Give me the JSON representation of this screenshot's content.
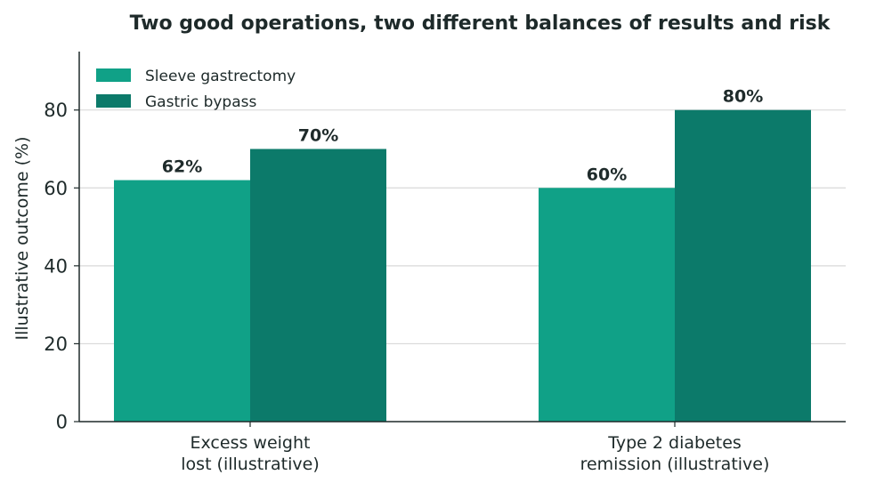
{
  "colors": {
    "sleeve": "#10a187",
    "bypass": "#0c7a6a",
    "grid": "#d9d9d9",
    "axis": "#1e2a2a",
    "text": "#1e2a2a"
  },
  "chart_data": {
    "type": "bar",
    "title": "Two good operations, two different balances of results and risk",
    "xlabel": "",
    "ylabel": "Illustrative outcome (%)",
    "ylim": [
      0,
      95
    ],
    "yticks": [
      0,
      20,
      40,
      60,
      80
    ],
    "grid": "horizontal",
    "legend_position": "top-left",
    "categories": [
      [
        "Excess weight",
        "lost (illustrative)"
      ],
      [
        "Type 2 diabetes",
        "remission (illustrative)"
      ]
    ],
    "series": [
      {
        "name": "Sleeve gastrectomy",
        "values": [
          62,
          60
        ],
        "labels": [
          "62%",
          "60%"
        ],
        "color_key": "sleeve"
      },
      {
        "name": "Gastric bypass",
        "values": [
          70,
          80
        ],
        "labels": [
          "70%",
          "80%"
        ],
        "color_key": "bypass"
      }
    ]
  }
}
